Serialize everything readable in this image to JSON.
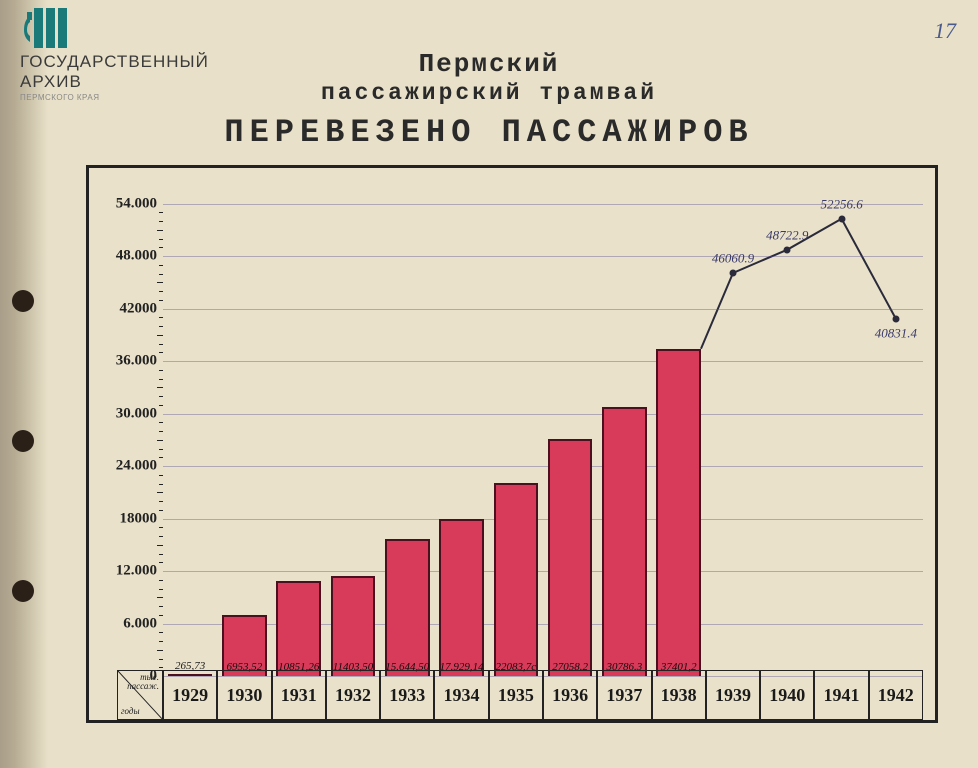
{
  "page_number": "17",
  "logo": {
    "line1": "ГОСУДАРСТВЕННЫЙ",
    "line2": "АРХИВ",
    "line3": "ПЕРМСКОГО КРАЯ",
    "color": "#1a7a7a"
  },
  "title": {
    "line1": "Пермский",
    "line2": "пассажирский трамвай",
    "line3": "ПЕРЕВЕЗЕНО   ПАССАЖИРОВ"
  },
  "chart": {
    "type": "bar+line",
    "background_color": "#e8e0c8",
    "frame_color": "#222222",
    "grid_color": "rgba(90,80,150,0.4)",
    "y_axis": {
      "min": 0,
      "max": 56000,
      "tick_step": 6000,
      "tick_labels": [
        "0",
        "6.000",
        "12.000",
        "18000",
        "24.000",
        "30.000",
        "36.000",
        "42000",
        "48.000",
        "54.000"
      ],
      "label_fontsize": 15
    },
    "x_axis": {
      "corner_label_top": "тыс.\nпассаж.",
      "corner_label_bottom": "годы",
      "categories": [
        "1929",
        "1930",
        "1931",
        "1932",
        "1933",
        "1934",
        "1935",
        "1936",
        "1937",
        "1938",
        "1939",
        "1940",
        "1941",
        "1942"
      ],
      "label_fontsize": 18
    },
    "bars": {
      "color": "#d83a5a",
      "border_color": "#4a1020",
      "width_fraction": 0.82,
      "series": [
        {
          "year": "1929",
          "value": 265.73,
          "label": "265,73"
        },
        {
          "year": "1930",
          "value": 6953.52,
          "label": "6953,52"
        },
        {
          "year": "1931",
          "value": 10851.26,
          "label": "10851,26"
        },
        {
          "year": "1932",
          "value": 11403.5,
          "label": "11403,50"
        },
        {
          "year": "1933",
          "value": 15644.5,
          "label": "15.644,50"
        },
        {
          "year": "1934",
          "value": 17929.14,
          "label": "17.929,14"
        },
        {
          "year": "1935",
          "value": 22083.7,
          "label": "22083,7с"
        },
        {
          "year": "1936",
          "value": 27058.2,
          "label": "27058.2"
        },
        {
          "year": "1937",
          "value": 30786.3,
          "label": "30786.3"
        },
        {
          "year": "1938",
          "value": 37401.2,
          "label": "37401,2"
        }
      ]
    },
    "line": {
      "color": "#2a2a3a",
      "width": 2,
      "start_from_last_bar": true,
      "points": [
        {
          "year": "1938",
          "value": 37401.2,
          "label": ""
        },
        {
          "year": "1939",
          "value": 46060.9,
          "label": "46060.9"
        },
        {
          "year": "1940",
          "value": 48722.9,
          "label": "48722.9"
        },
        {
          "year": "1941",
          "value": 52256.6,
          "label": "52256.6"
        },
        {
          "year": "1942",
          "value": 40831.4,
          "label": "40831.4"
        }
      ]
    }
  }
}
